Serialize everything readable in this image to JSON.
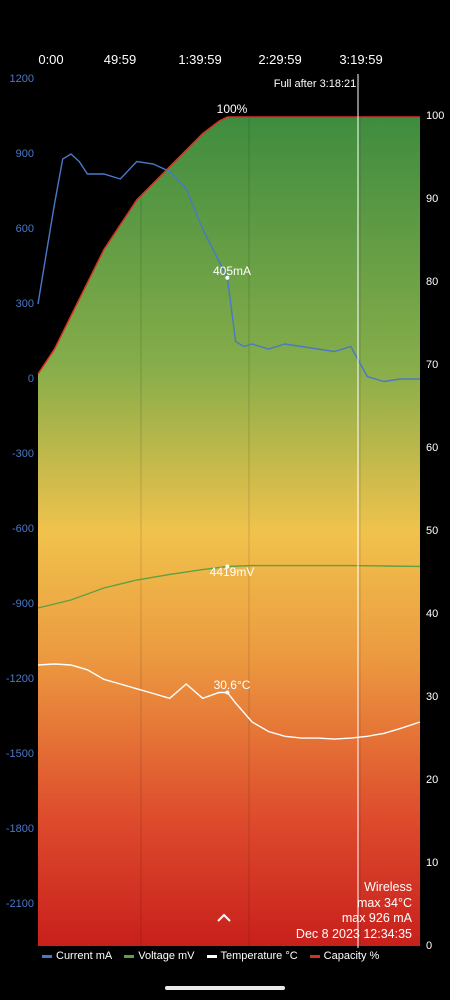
{
  "chart_data": {
    "type": "line",
    "x_ticks": [
      "0:00",
      "49:59",
      "1:39:59",
      "2:29:59",
      "3:19:59"
    ],
    "y_left_ticks": [
      "1200",
      "900",
      "600",
      "300",
      "0",
      "-300",
      "-600",
      "-900",
      "-1200",
      "-1500",
      "-1800",
      "-2100"
    ],
    "y_right_ticks": [
      "100",
      "90",
      "80",
      "70",
      "60",
      "50",
      "40",
      "30",
      "20",
      "10",
      "0"
    ],
    "series": [
      {
        "name": "Current mA",
        "color": "#4a78c8",
        "x_min": [
          0,
          5,
          10,
          15,
          20,
          25,
          30,
          40,
          50,
          60,
          70,
          80,
          90,
          100,
          110,
          115,
          120,
          125,
          130,
          135,
          140,
          150,
          160,
          170,
          180,
          190,
          200,
          210,
          220,
          230,
          232
        ],
        "values": [
          300,
          500,
          700,
          880,
          900,
          870,
          820,
          820,
          800,
          870,
          860,
          830,
          760,
          600,
          470,
          405,
          150,
          130,
          140,
          130,
          120,
          140,
          130,
          120,
          110,
          130,
          10,
          -10,
          0,
          0,
          0
        ]
      },
      {
        "name": "Voltage mV",
        "color": "#5fa040",
        "x_min": [
          0,
          20,
          40,
          60,
          80,
          100,
          115,
          130,
          160,
          190,
          210,
          232
        ],
        "values": [
          3900,
          4000,
          4150,
          4250,
          4320,
          4380,
          4419,
          4430,
          4430,
          4430,
          4425,
          4420
        ]
      },
      {
        "name": "Temperature °C",
        "color": "#ffffff",
        "x_min": [
          0,
          10,
          20,
          30,
          40,
          50,
          60,
          70,
          80,
          90,
          100,
          110,
          115,
          120,
          130,
          140,
          150,
          160,
          170,
          180,
          190,
          200,
          210,
          220,
          232
        ],
        "values": [
          33.5,
          33.6,
          33.5,
          33.0,
          32.0,
          31.5,
          31.0,
          30.5,
          30.0,
          31.5,
          30.0,
          30.6,
          30.6,
          29.5,
          27.5,
          26.5,
          26.0,
          25.8,
          25.8,
          25.7,
          25.8,
          26.0,
          26.3,
          26.8,
          27.5
        ]
      },
      {
        "name": "Capacity %",
        "color": "#d93020",
        "x_min": [
          0,
          10,
          20,
          30,
          40,
          50,
          60,
          70,
          80,
          90,
          100,
          110,
          115,
          120,
          232
        ],
        "values": [
          69,
          72,
          76,
          80,
          84,
          87,
          90,
          92,
          94,
          96,
          98,
          99.5,
          100,
          100,
          100
        ]
      }
    ],
    "annotations": {
      "full_after": "Full after 3:18:21",
      "capacity_peak": "100%",
      "current_now": "405mA",
      "voltage_now": "4419mV",
      "temp_now": "30.6°C"
    }
  },
  "info": {
    "mode": "Wireless",
    "max_temp": "max 34°C",
    "max_current": "max 926 mA",
    "date": "Dec 8 2023 12:34:35"
  },
  "legend": [
    {
      "label": "Current mA",
      "color": "#4a78c8"
    },
    {
      "label": "Voltage mV",
      "color": "#5fa040"
    },
    {
      "label": "Temperature °C",
      "color": "#ffffff"
    },
    {
      "label": "Capacity %",
      "color": "#d93020"
    }
  ]
}
